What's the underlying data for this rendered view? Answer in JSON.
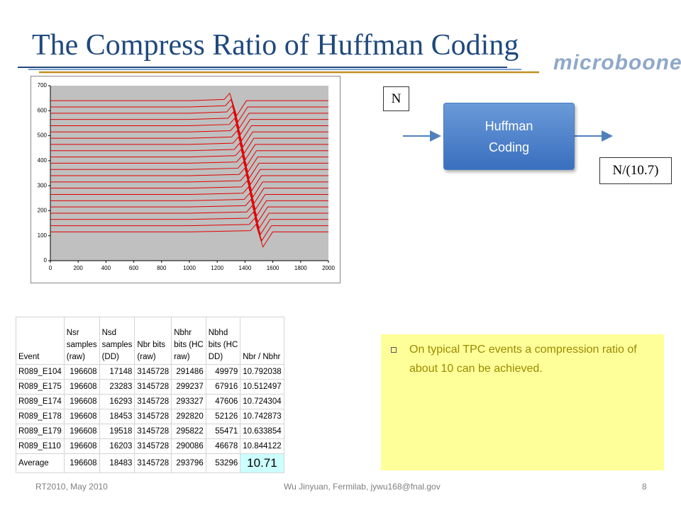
{
  "header": {
    "title": "The Compress Ratio of Huffman Coding",
    "logo": "microboone"
  },
  "chart_data": {
    "type": "line",
    "color": "#e00000",
    "background": "#c0c0c0",
    "xlim": [
      0,
      2000
    ],
    "xticks": [
      0,
      200,
      400,
      600,
      800,
      1000,
      1200,
      1400,
      1600,
      1800,
      2000
    ],
    "ylim": [
      0,
      700
    ],
    "yticks": [
      0,
      100,
      200,
      300,
      400,
      500,
      600,
      700
    ],
    "series": [
      {
        "x": [
          0,
          1000,
          1250,
          1290,
          1340,
          1410,
          2000
        ],
        "values": [
          640,
          640,
          645,
          670,
          580,
          640,
          640
        ]
      },
      {
        "x": [
          0,
          1000,
          1259,
          1299,
          1349,
          1419,
          2000
        ],
        "values": [
          615,
          615,
          620,
          645,
          555,
          615,
          615
        ]
      },
      {
        "x": [
          0,
          1000,
          1268,
          1308,
          1358,
          1428,
          2000
        ],
        "values": [
          590,
          590,
          595,
          620,
          530,
          590,
          590
        ]
      },
      {
        "x": [
          0,
          1000,
          1277,
          1317,
          1367,
          1437,
          2000
        ],
        "values": [
          565,
          565,
          570,
          595,
          505,
          565,
          565
        ]
      },
      {
        "x": [
          0,
          1000,
          1286,
          1326,
          1376,
          1446,
          2000
        ],
        "values": [
          540,
          540,
          545,
          570,
          480,
          540,
          540
        ]
      },
      {
        "x": [
          0,
          1000,
          1295,
          1335,
          1385,
          1455,
          2000
        ],
        "values": [
          515,
          515,
          520,
          545,
          455,
          515,
          515
        ]
      },
      {
        "x": [
          0,
          1000,
          1304,
          1344,
          1394,
          1464,
          2000
        ],
        "values": [
          490,
          490,
          495,
          520,
          430,
          490,
          490
        ]
      },
      {
        "x": [
          0,
          1000,
          1313,
          1353,
          1403,
          1473,
          2000
        ],
        "values": [
          465,
          465,
          470,
          495,
          405,
          465,
          465
        ]
      },
      {
        "x": [
          0,
          1000,
          1322,
          1362,
          1412,
          1482,
          2000
        ],
        "values": [
          440,
          440,
          445,
          470,
          380,
          440,
          440
        ]
      },
      {
        "x": [
          0,
          1000,
          1331,
          1371,
          1421,
          1491,
          2000
        ],
        "values": [
          415,
          415,
          420,
          445,
          355,
          415,
          415
        ]
      },
      {
        "x": [
          0,
          1000,
          1340,
          1380,
          1430,
          1500,
          2000
        ],
        "values": [
          390,
          390,
          395,
          420,
          330,
          390,
          390
        ]
      },
      {
        "x": [
          0,
          1000,
          1349,
          1389,
          1439,
          1509,
          2000
        ],
        "values": [
          365,
          365,
          370,
          395,
          305,
          365,
          365
        ]
      },
      {
        "x": [
          0,
          1000,
          1358,
          1398,
          1448,
          1518,
          2000
        ],
        "values": [
          340,
          340,
          345,
          370,
          280,
          340,
          340
        ]
      },
      {
        "x": [
          0,
          1000,
          1367,
          1407,
          1457,
          1527,
          2000
        ],
        "values": [
          315,
          315,
          320,
          345,
          255,
          315,
          315
        ]
      },
      {
        "x": [
          0,
          1000,
          1376,
          1416,
          1466,
          1536,
          2000
        ],
        "values": [
          290,
          290,
          295,
          320,
          230,
          290,
          290
        ]
      },
      {
        "x": [
          0,
          1000,
          1385,
          1425,
          1475,
          1545,
          2000
        ],
        "values": [
          265,
          265,
          270,
          295,
          205,
          265,
          265
        ]
      },
      {
        "x": [
          0,
          1000,
          1394,
          1434,
          1484,
          1554,
          2000
        ],
        "values": [
          240,
          240,
          245,
          270,
          180,
          240,
          240
        ]
      },
      {
        "x": [
          0,
          1000,
          1403,
          1443,
          1493,
          1563,
          2000
        ],
        "values": [
          215,
          215,
          220,
          245,
          155,
          215,
          215
        ]
      },
      {
        "x": [
          0,
          1000,
          1412,
          1452,
          1502,
          1572,
          2000
        ],
        "values": [
          190,
          190,
          195,
          220,
          130,
          190,
          190
        ]
      },
      {
        "x": [
          0,
          1000,
          1421,
          1461,
          1511,
          1581,
          2000
        ],
        "values": [
          165,
          165,
          170,
          195,
          105,
          165,
          165
        ]
      },
      {
        "x": [
          0,
          1000,
          1430,
          1470,
          1520,
          1590,
          2000
        ],
        "values": [
          140,
          140,
          145,
          170,
          80,
          140,
          140
        ]
      },
      {
        "x": [
          0,
          1000,
          1439,
          1479,
          1529,
          1599,
          2000
        ],
        "values": [
          115,
          115,
          120,
          145,
          55,
          115,
          115
        ]
      }
    ]
  },
  "diagram": {
    "input": "N",
    "block": [
      "Huffman",
      "Coding"
    ],
    "output": "N/(10.7)"
  },
  "table": {
    "header": [
      [
        "Event"
      ],
      [
        "Nsr",
        "samples",
        "(raw)"
      ],
      [
        "Nsd",
        "samples",
        "(DD)"
      ],
      [
        "Nbr bits",
        "(raw)"
      ],
      [
        "Nbhr",
        "bits (HC",
        "raw)"
      ],
      [
        "Nbhd",
        "bits (HC",
        "DD)"
      ],
      [
        "Nbr / Nbhr"
      ]
    ],
    "rows": [
      [
        "R089_E104",
        196608,
        17148,
        3145728,
        291486,
        49979,
        10.792038
      ],
      [
        "R089_E175",
        196608,
        23283,
        3145728,
        299237,
        67916,
        10.512497
      ],
      [
        "R089_E174",
        196608,
        16293,
        3145728,
        293327,
        47606,
        10.724304
      ],
      [
        "R089_E178",
        196608,
        18453,
        3145728,
        292820,
        52126,
        10.742873
      ],
      [
        "R089_E179",
        196608,
        19518,
        3145728,
        295822,
        55471,
        10.633854
      ],
      [
        "R089_E110",
        196608,
        16203,
        3145728,
        290086,
        46678,
        10.844122
      ]
    ],
    "average": [
      "Average",
      196608,
      18483,
      3145728,
      293796,
      53296,
      10.71
    ]
  },
  "note": "On typical TPC events a compression ratio of about 10 can be achieved.",
  "footer": {
    "left": "RT2010, May 2010",
    "center": "Wu Jinyuan, Fermilab, jywu168@fnal.gov",
    "page": "8"
  }
}
